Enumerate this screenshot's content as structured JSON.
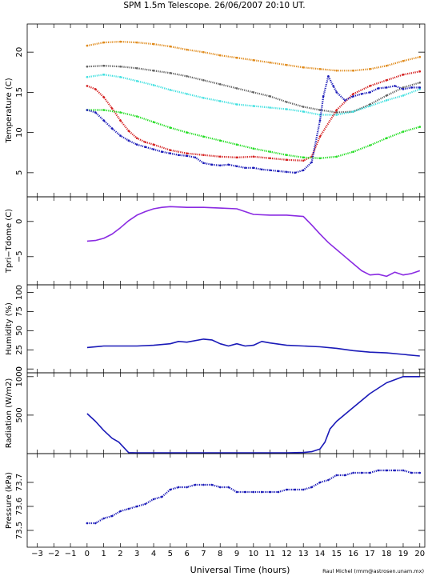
{
  "figure": {
    "title": "SPM 1.5m Telescope. 26/06/2007 20:10 UT.",
    "xlabel": "Universal Time (hours)",
    "credit": "Raul Michel (rmm@astrosen.unam.mx)",
    "xticks": [
      "−3",
      "−2",
      "−1",
      "0",
      "1",
      "2",
      "3",
      "4",
      "5",
      "6",
      "7",
      "8",
      "9",
      "10",
      "11",
      "12",
      "13",
      "14",
      "15",
      "16",
      "17",
      "18",
      "19",
      "20"
    ]
  },
  "chart_data": [
    {
      "type": "scatter",
      "ylabel": "Temperature (C)",
      "xlim": [
        -3.6,
        20.3
      ],
      "ylim": [
        2,
        23.5
      ],
      "yticks": [
        "5",
        "10",
        "15",
        "20"
      ],
      "series": [
        {
          "color": "#e08a1a",
          "x": [
            0,
            1,
            2,
            3,
            4,
            5,
            6,
            7,
            8,
            9,
            10,
            11,
            12,
            13,
            14,
            15,
            16,
            17,
            18,
            19,
            20
          ],
          "y": [
            20.8,
            21.2,
            21.3,
            21.2,
            21.0,
            20.7,
            20.3,
            20.0,
            19.6,
            19.3,
            19.0,
            18.7,
            18.4,
            18.1,
            17.9,
            17.7,
            17.7,
            17.9,
            18.3,
            18.9,
            19.4
          ]
        },
        {
          "color": "#606060",
          "x": [
            0,
            1,
            2,
            3,
            4,
            5,
            6,
            7,
            8,
            9,
            10,
            11,
            12,
            13,
            14,
            15,
            16,
            17,
            18,
            19,
            20
          ],
          "y": [
            18.2,
            18.3,
            18.2,
            18.0,
            17.7,
            17.4,
            17.0,
            16.5,
            16.0,
            15.5,
            15.0,
            14.5,
            13.8,
            13.2,
            12.8,
            12.5,
            12.6,
            13.5,
            14.6,
            15.6,
            16.2
          ]
        },
        {
          "color": "#40e0e0",
          "x": [
            0,
            1,
            2,
            3,
            4,
            5,
            6,
            7,
            8,
            9,
            10,
            11,
            12,
            13,
            14,
            15,
            16,
            17,
            18,
            19,
            20
          ],
          "y": [
            16.9,
            17.2,
            16.9,
            16.4,
            15.9,
            15.3,
            14.8,
            14.3,
            13.9,
            13.5,
            13.3,
            13.1,
            12.9,
            12.6,
            12.2,
            12.2,
            12.6,
            13.3,
            14.0,
            14.6,
            15.4
          ]
        },
        {
          "color": "#d42020",
          "x": [
            0,
            0.5,
            1,
            1.5,
            2,
            2.5,
            3,
            3.5,
            4,
            5,
            6,
            7,
            8,
            9,
            10,
            11,
            12,
            13,
            13.5,
            14,
            15,
            16,
            17,
            18,
            19,
            20
          ],
          "y": [
            15.8,
            15.4,
            14.4,
            13.0,
            11.5,
            10.2,
            9.3,
            8.8,
            8.5,
            7.8,
            7.4,
            7.2,
            7.0,
            6.9,
            7.0,
            6.8,
            6.6,
            6.5,
            7.0,
            9.5,
            12.8,
            14.8,
            15.8,
            16.5,
            17.2,
            17.6
          ]
        },
        {
          "color": "#22dd22",
          "x": [
            0,
            1,
            2,
            3,
            4,
            5,
            6,
            7,
            8,
            9,
            10,
            11,
            12,
            13,
            14,
            15,
            16,
            17,
            18,
            19,
            20
          ],
          "y": [
            12.8,
            12.8,
            12.5,
            12.0,
            11.3,
            10.6,
            10.0,
            9.5,
            9.0,
            8.5,
            8.0,
            7.6,
            7.2,
            6.9,
            6.8,
            7.0,
            7.6,
            8.4,
            9.3,
            10.1,
            10.7
          ]
        },
        {
          "color": "#1a1ab8",
          "x": [
            0,
            0.5,
            1,
            1.5,
            2,
            2.5,
            3,
            3.5,
            4,
            4.5,
            5,
            5.5,
            6,
            6.5,
            7,
            7.5,
            8,
            8.5,
            9,
            9.5,
            10,
            10.5,
            11,
            11.5,
            12,
            12.5,
            13,
            13.5,
            14,
            14.2,
            14.5,
            14.8,
            15,
            15.5,
            16,
            16.5,
            17,
            17.5,
            18,
            18.5,
            19,
            19.5,
            20
          ],
          "y": [
            12.8,
            12.5,
            11.5,
            10.5,
            9.6,
            9.0,
            8.5,
            8.2,
            7.9,
            7.6,
            7.4,
            7.2,
            7.1,
            6.9,
            6.2,
            6.0,
            5.9,
            6.0,
            5.8,
            5.6,
            5.6,
            5.4,
            5.3,
            5.2,
            5.1,
            5.0,
            5.3,
            6.3,
            11.5,
            14.5,
            17.0,
            15.8,
            15.0,
            14.0,
            14.5,
            14.8,
            15.0,
            15.5,
            15.6,
            15.8,
            15.4,
            15.6,
            15.6
          ]
        }
      ]
    },
    {
      "type": "line",
      "ylabel": "Tpri−Tdome (C)",
      "xlim": [
        -3.6,
        20.3
      ],
      "ylim": [
        -9,
        3.5
      ],
      "yticks": [
        "−5",
        "0"
      ],
      "series": [
        {
          "color": "#8a2be2",
          "x": [
            0,
            0.5,
            1,
            1.5,
            2,
            2.5,
            3,
            3.5,
            4,
            4.5,
            5,
            6,
            7,
            8,
            9,
            10,
            11,
            12,
            13,
            13.5,
            14,
            14.5,
            15,
            15.5,
            16,
            16.5,
            17,
            17.5,
            18,
            18.5,
            19,
            19.5,
            20
          ],
          "y": [
            -2.8,
            -2.7,
            -2.4,
            -1.8,
            -0.9,
            0.1,
            0.9,
            1.4,
            1.8,
            2.0,
            2.1,
            2.0,
            2.0,
            1.9,
            1.8,
            1.0,
            0.9,
            0.9,
            0.7,
            -0.5,
            -1.8,
            -3.0,
            -4.0,
            -5.0,
            -6.0,
            -7.0,
            -7.6,
            -7.5,
            -7.8,
            -7.2,
            -7.6,
            -7.4,
            -7.0
          ]
        }
      ]
    },
    {
      "type": "line",
      "ylabel": "Humidity (%)",
      "xlim": [
        -3.6,
        20.3
      ],
      "ylim": [
        -5,
        110
      ],
      "yticks": [
        "0",
        "25",
        "50",
        "75",
        "100"
      ],
      "series": [
        {
          "color": "#1a1ab8",
          "x": [
            0,
            1,
            2,
            3,
            4,
            5,
            5.5,
            6,
            7,
            7.5,
            8,
            8.5,
            9,
            9.5,
            10,
            10.5,
            11,
            12,
            13,
            14,
            15,
            16,
            17,
            18,
            19,
            20
          ],
          "y": [
            28,
            30,
            30,
            30,
            31,
            33,
            36,
            35,
            39,
            38,
            33,
            30,
            33,
            30,
            31,
            36,
            34,
            31,
            30,
            29,
            27,
            24,
            22,
            21,
            19,
            17
          ]
        }
      ]
    },
    {
      "type": "line",
      "ylabel": "Radiation (W/m2)",
      "xlim": [
        -3.6,
        20.3
      ],
      "ylim": [
        0,
        1050
      ],
      "yticks": [
        "500",
        "1000"
      ],
      "series": [
        {
          "color": "#1a1ab8",
          "x": [
            0,
            0.5,
            1,
            1.5,
            1.9,
            2.5,
            3,
            4,
            5,
            6,
            7,
            8,
            9,
            10,
            11,
            12,
            13,
            13.5,
            14,
            14.3,
            14.6,
            15,
            16,
            17,
            18,
            19,
            20
          ],
          "y": [
            520,
            420,
            300,
            200,
            150,
            12,
            10,
            10,
            10,
            10,
            10,
            10,
            10,
            10,
            10,
            10,
            15,
            25,
            60,
            150,
            320,
            420,
            600,
            780,
            920,
            1000,
            1000
          ]
        }
      ]
    },
    {
      "type": "scatter",
      "ylabel": "Pressure (kPa)",
      "xlim": [
        -3.6,
        20.3
      ],
      "ylim": [
        73.43,
        73.82
      ],
      "yticks": [
        "73.5",
        "73.6",
        "73.7"
      ],
      "series": [
        {
          "color": "#1a1ab8",
          "x": [
            0,
            0.5,
            1,
            1.5,
            2,
            2.5,
            3,
            3.5,
            4,
            4.5,
            5,
            5.5,
            6,
            6.5,
            7,
            7.5,
            8,
            8.5,
            9,
            9.5,
            10,
            10.5,
            11,
            11.5,
            12,
            12.5,
            13,
            13.5,
            14,
            14.5,
            15,
            15.5,
            16,
            16.5,
            17,
            17.5,
            18,
            18.5,
            19,
            19.5,
            20
          ],
          "y": [
            73.53,
            73.53,
            73.55,
            73.56,
            73.58,
            73.59,
            73.6,
            73.61,
            73.63,
            73.64,
            73.67,
            73.68,
            73.68,
            73.69,
            73.69,
            73.69,
            73.68,
            73.68,
            73.66,
            73.66,
            73.66,
            73.66,
            73.66,
            73.66,
            73.67,
            73.67,
            73.67,
            73.68,
            73.7,
            73.71,
            73.73,
            73.73,
            73.74,
            73.74,
            73.74,
            73.75,
            73.75,
            73.75,
            73.75,
            73.74,
            73.74
          ]
        }
      ]
    }
  ]
}
